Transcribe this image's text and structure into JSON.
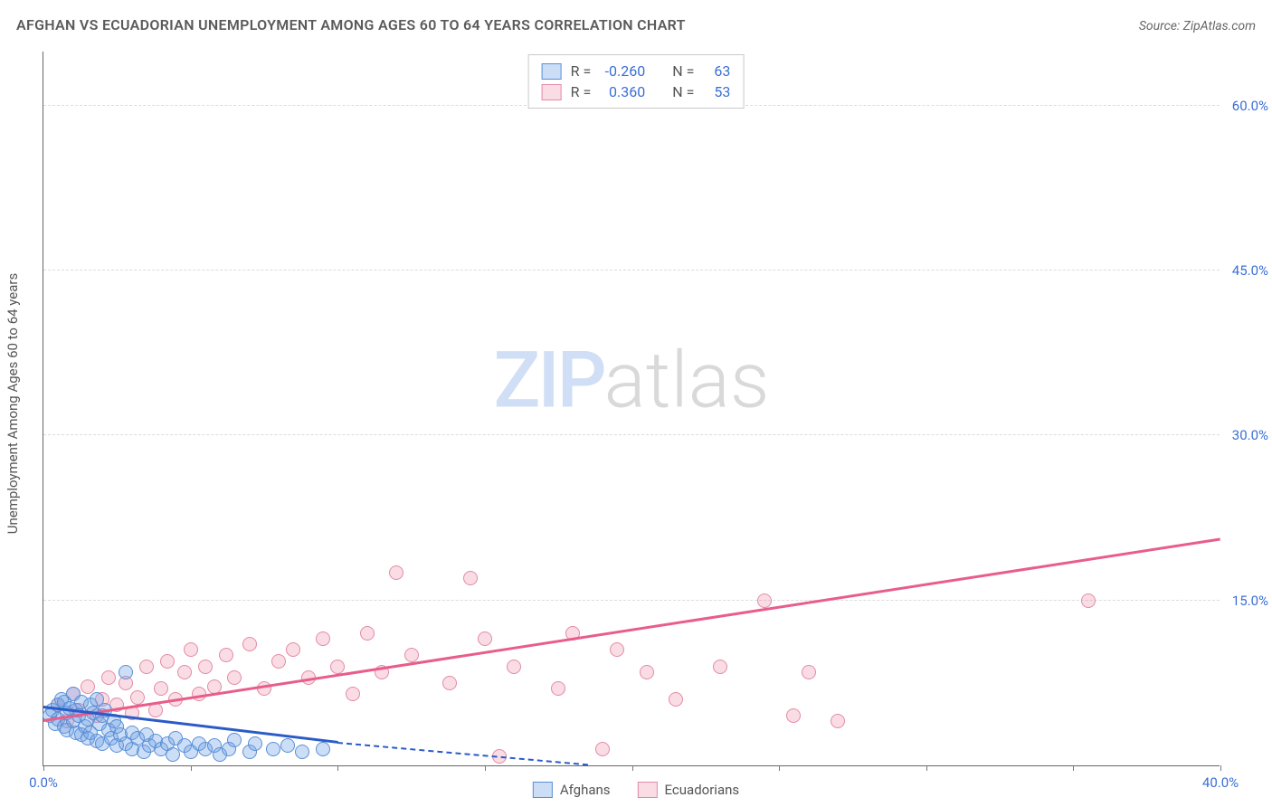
{
  "title": "AFGHAN VS ECUADORIAN UNEMPLOYMENT AMONG AGES 60 TO 64 YEARS CORRELATION CHART",
  "source": "Source: ZipAtlas.com",
  "y_axis_label": "Unemployment Among Ages 60 to 64 years",
  "watermark": {
    "zip": "ZIP",
    "atlas": "atlas"
  },
  "colors": {
    "series_a_fill": "rgba(110,160,230,0.35)",
    "series_a_stroke": "#5a8fd6",
    "series_a_trend": "#2a5bc7",
    "series_b_fill": "rgba(240,140,170,0.30)",
    "series_b_stroke": "#e48aa6",
    "series_b_trend": "#e85d8a",
    "grid": "#dcdcdc",
    "axis": "#666666",
    "tick_text": "#3b6fd6",
    "title_text": "#5a5a5a"
  },
  "chart": {
    "type": "scatter",
    "xlim": [
      0,
      40
    ],
    "ylim": [
      0,
      65
    ],
    "x_ticks": [
      0,
      5,
      10,
      15,
      20,
      25,
      30,
      35,
      40
    ],
    "x_tick_labels": {
      "0": "0.0%",
      "40": "40.0%"
    },
    "y_gridlines": [
      15,
      30,
      45,
      60
    ],
    "y_tick_labels": {
      "15": "15.0%",
      "30": "30.0%",
      "45": "45.0%",
      "60": "60.0%"
    },
    "point_radius": 8
  },
  "legend_top": [
    {
      "swatch": "a",
      "r_label": "R =",
      "r_val": "-0.260",
      "n_label": "N =",
      "n_val": "63"
    },
    {
      "swatch": "b",
      "r_label": "R =",
      "r_val": " 0.360",
      "n_label": "N =",
      "n_val": "53"
    }
  ],
  "legend_bottom": [
    {
      "swatch": "a",
      "label": "Afghans"
    },
    {
      "swatch": "b",
      "label": "Ecuadorians"
    }
  ],
  "trend_lines": {
    "a_solid": {
      "x1": 0,
      "y1": 5.2,
      "x2": 10,
      "y2": 2.0
    },
    "a_dashed": {
      "x1": 10,
      "y1": 2.0,
      "x2": 18.5,
      "y2": 0
    },
    "b_solid": {
      "x1": 0,
      "y1": 4.0,
      "x2": 40,
      "y2": 20.5
    }
  },
  "series_a_points": [
    [
      0.2,
      4.5
    ],
    [
      0.3,
      5.0
    ],
    [
      0.4,
      3.8
    ],
    [
      0.5,
      5.5
    ],
    [
      0.5,
      4.2
    ],
    [
      0.6,
      6.0
    ],
    [
      0.7,
      3.5
    ],
    [
      0.7,
      5.8
    ],
    [
      0.8,
      4.8
    ],
    [
      0.8,
      3.2
    ],
    [
      0.9,
      5.2
    ],
    [
      1.0,
      4.0
    ],
    [
      1.0,
      6.5
    ],
    [
      1.1,
      3.0
    ],
    [
      1.1,
      5.0
    ],
    [
      1.2,
      4.5
    ],
    [
      1.3,
      2.8
    ],
    [
      1.3,
      5.8
    ],
    [
      1.4,
      3.5
    ],
    [
      1.5,
      4.2
    ],
    [
      1.5,
      2.5
    ],
    [
      1.6,
      5.5
    ],
    [
      1.6,
      3.0
    ],
    [
      1.7,
      4.8
    ],
    [
      1.8,
      2.2
    ],
    [
      1.8,
      6.0
    ],
    [
      1.9,
      3.8
    ],
    [
      2.0,
      4.5
    ],
    [
      2.0,
      2.0
    ],
    [
      2.1,
      5.0
    ],
    [
      2.2,
      3.2
    ],
    [
      2.3,
      2.5
    ],
    [
      2.4,
      4.0
    ],
    [
      2.5,
      1.8
    ],
    [
      2.5,
      3.5
    ],
    [
      2.6,
      2.8
    ],
    [
      2.8,
      8.5
    ],
    [
      2.8,
      2.0
    ],
    [
      3.0,
      3.0
    ],
    [
      3.0,
      1.5
    ],
    [
      3.2,
      2.5
    ],
    [
      3.4,
      1.2
    ],
    [
      3.5,
      2.8
    ],
    [
      3.6,
      1.8
    ],
    [
      3.8,
      2.2
    ],
    [
      4.0,
      1.5
    ],
    [
      4.2,
      2.0
    ],
    [
      4.4,
      1.0
    ],
    [
      4.5,
      2.5
    ],
    [
      4.8,
      1.8
    ],
    [
      5.0,
      1.2
    ],
    [
      5.3,
      2.0
    ],
    [
      5.5,
      1.5
    ],
    [
      5.8,
      1.8
    ],
    [
      6.0,
      1.0
    ],
    [
      6.3,
      1.5
    ],
    [
      6.5,
      2.3
    ],
    [
      7.0,
      1.2
    ],
    [
      7.2,
      2.0
    ],
    [
      7.8,
      1.5
    ],
    [
      8.3,
      1.8
    ],
    [
      8.8,
      1.2
    ],
    [
      9.5,
      1.5
    ]
  ],
  "series_b_points": [
    [
      0.5,
      5.5
    ],
    [
      0.8,
      4.0
    ],
    [
      1.0,
      6.5
    ],
    [
      1.2,
      5.0
    ],
    [
      1.5,
      7.2
    ],
    [
      1.8,
      4.5
    ],
    [
      2.0,
      6.0
    ],
    [
      2.2,
      8.0
    ],
    [
      2.5,
      5.5
    ],
    [
      2.8,
      7.5
    ],
    [
      3.0,
      4.8
    ],
    [
      3.2,
      6.2
    ],
    [
      3.5,
      9.0
    ],
    [
      3.8,
      5.0
    ],
    [
      4.0,
      7.0
    ],
    [
      4.2,
      9.5
    ],
    [
      4.5,
      6.0
    ],
    [
      4.8,
      8.5
    ],
    [
      5.0,
      10.5
    ],
    [
      5.3,
      6.5
    ],
    [
      5.5,
      9.0
    ],
    [
      5.8,
      7.2
    ],
    [
      6.2,
      10.0
    ],
    [
      6.5,
      8.0
    ],
    [
      7.0,
      11.0
    ],
    [
      7.5,
      7.0
    ],
    [
      8.0,
      9.5
    ],
    [
      8.5,
      10.5
    ],
    [
      9.0,
      8.0
    ],
    [
      9.5,
      11.5
    ],
    [
      10.0,
      9.0
    ],
    [
      10.5,
      6.5
    ],
    [
      11.0,
      12.0
    ],
    [
      11.5,
      8.5
    ],
    [
      12.0,
      17.5
    ],
    [
      12.5,
      10.0
    ],
    [
      13.8,
      7.5
    ],
    [
      14.5,
      17.0
    ],
    [
      15.0,
      11.5
    ],
    [
      15.5,
      0.8
    ],
    [
      16.0,
      9.0
    ],
    [
      17.5,
      7.0
    ],
    [
      18.0,
      12.0
    ],
    [
      19.0,
      1.5
    ],
    [
      19.5,
      10.5
    ],
    [
      20.5,
      8.5
    ],
    [
      21.5,
      6.0
    ],
    [
      23.0,
      9.0
    ],
    [
      24.5,
      15.0
    ],
    [
      25.5,
      4.5
    ],
    [
      26.0,
      8.5
    ],
    [
      27.0,
      4.0
    ],
    [
      35.5,
      15.0
    ]
  ]
}
